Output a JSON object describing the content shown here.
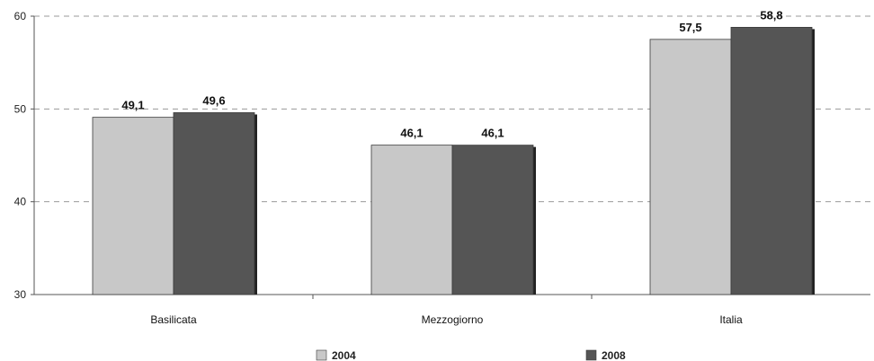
{
  "chart_data": {
    "type": "bar",
    "categories": [
      "Basilicata",
      "Mezzogiorno",
      "Italia"
    ],
    "series": [
      {
        "name": "2004",
        "values": [
          49.1,
          46.1,
          57.5
        ],
        "labels": [
          "49,1",
          "46,1",
          "57,5"
        ],
        "color": "#c8c8c8"
      },
      {
        "name": "2008",
        "values": [
          49.6,
          46.1,
          58.8
        ],
        "labels": [
          "49,6",
          "46,1",
          "58,8"
        ],
        "color": "#555555"
      }
    ],
    "ylim": [
      30,
      60
    ],
    "yticks": [
      30,
      40,
      50,
      60
    ],
    "grid": true,
    "legend_position": "bottom",
    "title": "",
    "xlabel": "",
    "ylabel": ""
  }
}
